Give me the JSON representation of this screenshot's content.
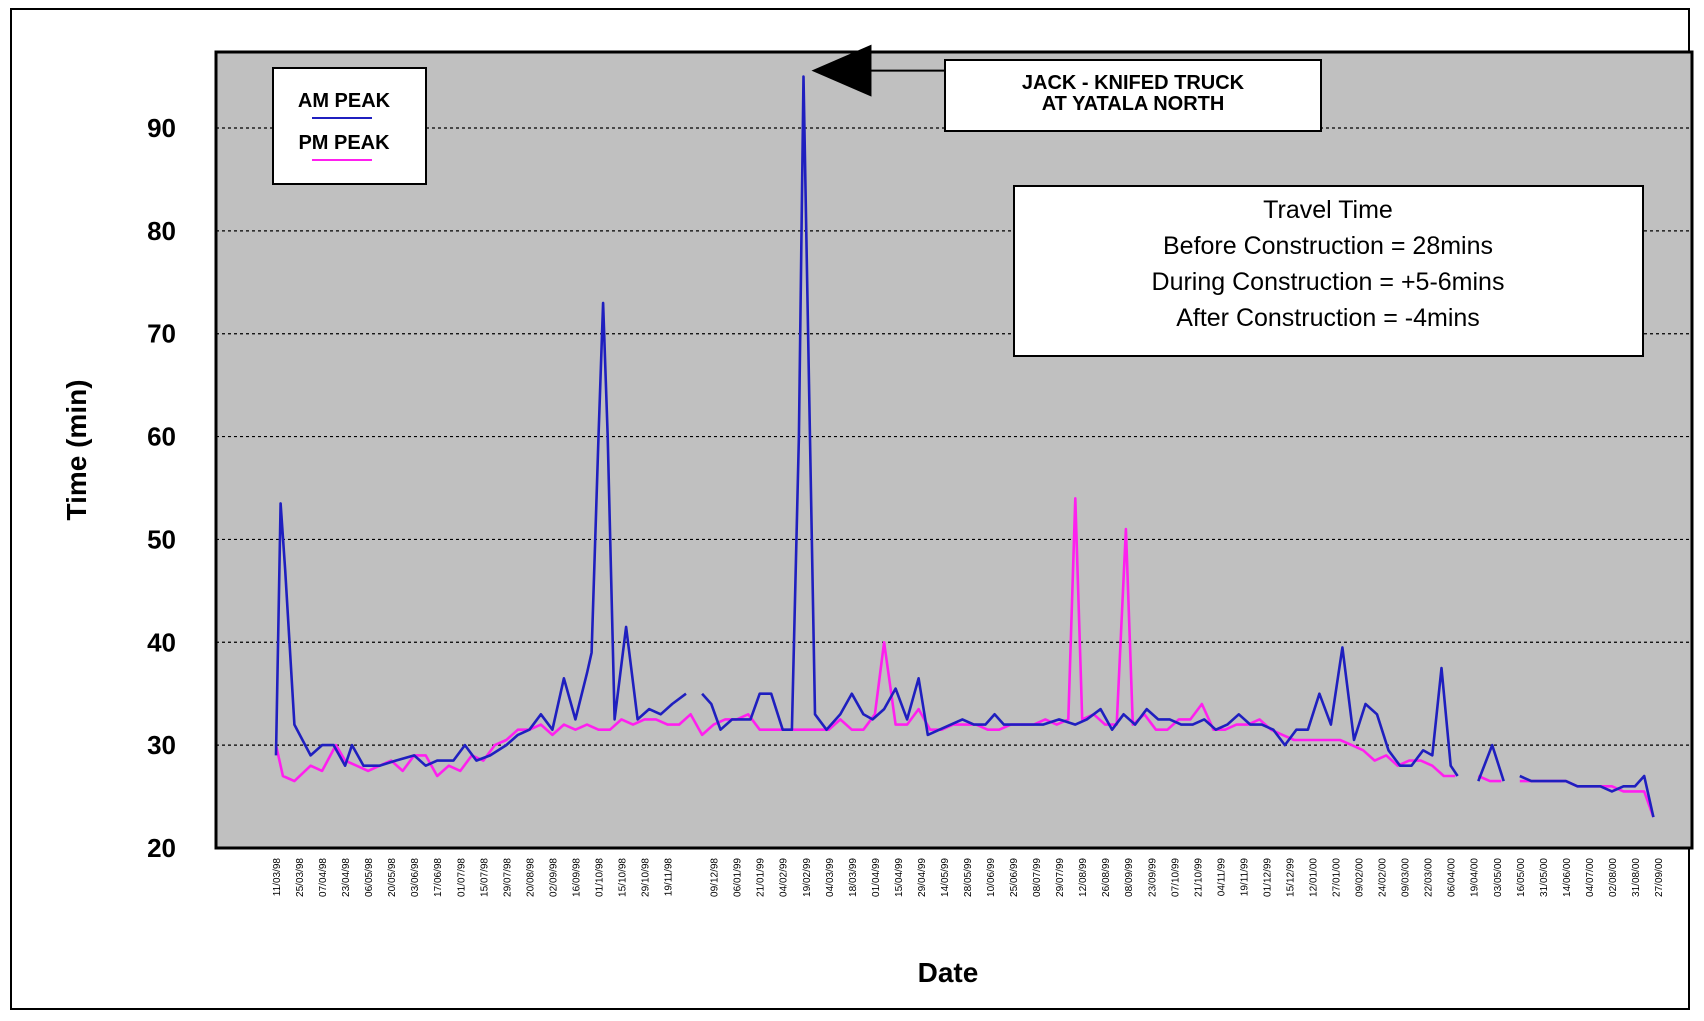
{
  "chart_data": {
    "type": "line",
    "title": "",
    "xlabel": "Date",
    "ylabel": "Time (min)",
    "ylim": [
      20,
      100
    ],
    "yticks": [
      20,
      30,
      40,
      50,
      60,
      70,
      80,
      90
    ],
    "grid": "horizontal dotted",
    "legend_position": "top-left",
    "x_tick_labels": [
      "11/03/98",
      "25/03/98",
      "07/04/98",
      "23/04/98",
      "06/05/98",
      "20/05/98",
      "03/06/98",
      "17/06/98",
      "01/07/98",
      "15/07/98",
      "29/07/98",
      "20/08/98",
      "02/09/98",
      "16/09/98",
      "01/10/98",
      "15/10/98",
      "29/10/98",
      "19/11/98",
      "",
      "09/12/98",
      "06/01/99",
      "21/01/99",
      "04/02/99",
      "19/02/99",
      "04/03/99",
      "18/03/99",
      "01/04/99",
      "15/04/99",
      "29/04/99",
      "14/05/99",
      "28/05/99",
      "10/06/99",
      "25/06/99",
      "08/07/99",
      "29/07/99",
      "12/08/99",
      "26/08/99",
      "08/09/99",
      "23/09/99",
      "07/10/99",
      "21/10/99",
      "04/11/99",
      "19/11/99",
      "01/12/99",
      "15/12/99",
      "12/01/00",
      "27/01/00",
      "09/02/00",
      "24/02/00",
      "09/03/00",
      "22/03/00",
      "06/04/00",
      "19/04/00",
      "03/05/00",
      "16/05/00",
      "31/05/00",
      "14/06/00",
      "04/07/00",
      "02/08/00",
      "31/08/00",
      "27/09/00"
    ],
    "series": [
      {
        "name": "AM PEAK",
        "color": "#1f1fbf",
        "points": [
          [
            0,
            29
          ],
          [
            0.2,
            53.5
          ],
          [
            0.4,
            47
          ],
          [
            0.8,
            32
          ],
          [
            1.5,
            29
          ],
          [
            2,
            30
          ],
          [
            2.5,
            30
          ],
          [
            3,
            28
          ],
          [
            3.3,
            30
          ],
          [
            3.8,
            28
          ],
          [
            4.5,
            28
          ],
          [
            5.2,
            28.5
          ],
          [
            6,
            29
          ],
          [
            6.5,
            28
          ],
          [
            7,
            28.5
          ],
          [
            7.7,
            28.5
          ],
          [
            8.2,
            30
          ],
          [
            8.7,
            28.5
          ],
          [
            9.3,
            29
          ],
          [
            10,
            30
          ],
          [
            10.5,
            31
          ],
          [
            11,
            31.5
          ],
          [
            11.5,
            33
          ],
          [
            12,
            31.5
          ],
          [
            12.5,
            36.5
          ],
          [
            13,
            32.5
          ],
          [
            13.5,
            37
          ],
          [
            13.7,
            39
          ],
          [
            14,
            60
          ],
          [
            14.2,
            73
          ],
          [
            14.4,
            60
          ],
          [
            14.7,
            32.5
          ],
          [
            15.2,
            41.5
          ],
          [
            15.7,
            32.5
          ],
          [
            16.2,
            33.5
          ],
          [
            16.7,
            33
          ],
          [
            17.2,
            34
          ],
          [
            17.8,
            35
          ],
          [
            null,
            null
          ],
          [
            18.5,
            35
          ],
          [
            18.9,
            34
          ],
          [
            19.3,
            31.5
          ],
          [
            19.8,
            32.5
          ],
          [
            20.2,
            32.5
          ],
          [
            20.6,
            32.5
          ],
          [
            21,
            35
          ],
          [
            21.5,
            35
          ],
          [
            22,
            31.5
          ],
          [
            22.4,
            31.5
          ],
          [
            22.7,
            60
          ],
          [
            22.9,
            95
          ],
          [
            23.1,
            70
          ],
          [
            23.4,
            33
          ],
          [
            23.9,
            31.5
          ],
          [
            24.5,
            33
          ],
          [
            25,
            35
          ],
          [
            25.5,
            33
          ],
          [
            25.9,
            32.5
          ],
          [
            26.4,
            33.5
          ],
          [
            26.9,
            35.5
          ],
          [
            27.4,
            32.5
          ],
          [
            27.9,
            36.5
          ],
          [
            28.3,
            31
          ],
          [
            28.8,
            31.5
          ],
          [
            29.3,
            32
          ],
          [
            29.8,
            32.5
          ],
          [
            30.3,
            32
          ],
          [
            30.8,
            32
          ],
          [
            31.2,
            33
          ],
          [
            31.6,
            32
          ],
          [
            32.5,
            32
          ],
          [
            33.3,
            32
          ],
          [
            34,
            32.5
          ],
          [
            34.7,
            32
          ],
          [
            35.2,
            32.5
          ],
          [
            35.8,
            33.5
          ],
          [
            36.3,
            31.5
          ],
          [
            36.8,
            33
          ],
          [
            37.3,
            32
          ],
          [
            37.8,
            33.5
          ],
          [
            38.3,
            32.5
          ],
          [
            38.8,
            32.5
          ],
          [
            39.3,
            32
          ],
          [
            39.8,
            32
          ],
          [
            40.3,
            32.5
          ],
          [
            40.8,
            31.5
          ],
          [
            41.3,
            32
          ],
          [
            41.8,
            33
          ],
          [
            42.3,
            32
          ],
          [
            42.8,
            32
          ],
          [
            43.3,
            31.5
          ],
          [
            43.8,
            30
          ],
          [
            44.3,
            31.5
          ],
          [
            44.8,
            31.5
          ],
          [
            45.3,
            35
          ],
          [
            45.8,
            32
          ],
          [
            46.3,
            39.5
          ],
          [
            46.8,
            30.5
          ],
          [
            47.3,
            34
          ],
          [
            47.8,
            33
          ],
          [
            48.3,
            29.5
          ],
          [
            48.8,
            28
          ],
          [
            49.3,
            28
          ],
          [
            49.8,
            29.5
          ],
          [
            50.2,
            29
          ],
          [
            50.6,
            37.5
          ],
          [
            51,
            28
          ],
          [
            51.3,
            27
          ],
          [
            null,
            null
          ],
          [
            52.2,
            26.5
          ],
          [
            52.8,
            30
          ],
          [
            53.3,
            26.5
          ],
          [
            null,
            null
          ],
          [
            54,
            27
          ],
          [
            54.5,
            26.5
          ],
          [
            55,
            26.5
          ],
          [
            55.5,
            26.5
          ],
          [
            56,
            26.5
          ],
          [
            56.5,
            26
          ],
          [
            57,
            26
          ],
          [
            57.5,
            26
          ],
          [
            58,
            25.5
          ],
          [
            58.5,
            26
          ],
          [
            59,
            26
          ],
          [
            59.4,
            27
          ],
          [
            59.8,
            23
          ]
        ]
      },
      {
        "name": "PM PEAK",
        "color": "#ff1fef",
        "points": [
          [
            0,
            30
          ],
          [
            0.3,
            27
          ],
          [
            0.8,
            26.5
          ],
          [
            1.5,
            28
          ],
          [
            2,
            27.5
          ],
          [
            2.6,
            30
          ],
          [
            3,
            28.5
          ],
          [
            3.5,
            28
          ],
          [
            4,
            27.5
          ],
          [
            4.5,
            28
          ],
          [
            5,
            28.5
          ],
          [
            5.5,
            27.5
          ],
          [
            6,
            29
          ],
          [
            6.5,
            29
          ],
          [
            7,
            27
          ],
          [
            7.5,
            28
          ],
          [
            8,
            27.5
          ],
          [
            8.5,
            29
          ],
          [
            9,
            28.5
          ],
          [
            9.5,
            30
          ],
          [
            10,
            30.5
          ],
          [
            10.5,
            31.5
          ],
          [
            11,
            31.5
          ],
          [
            11.5,
            32
          ],
          [
            12,
            31
          ],
          [
            12.5,
            32
          ],
          [
            13,
            31.5
          ],
          [
            13.5,
            32
          ],
          [
            14,
            31.5
          ],
          [
            14.5,
            31.5
          ],
          [
            15,
            32.5
          ],
          [
            15.5,
            32
          ],
          [
            16,
            32.5
          ],
          [
            16.5,
            32.5
          ],
          [
            17,
            32
          ],
          [
            17.5,
            32
          ],
          [
            18,
            33
          ],
          [
            18.5,
            31
          ],
          [
            19,
            32
          ],
          [
            19.5,
            32.5
          ],
          [
            20,
            32.5
          ],
          [
            20.5,
            33
          ],
          [
            21,
            31.5
          ],
          [
            21.5,
            31.5
          ],
          [
            22,
            31.5
          ],
          [
            22.5,
            31.5
          ],
          [
            23,
            31.5
          ],
          [
            23.5,
            31.5
          ],
          [
            24,
            31.5
          ],
          [
            24.5,
            32.5
          ],
          [
            25,
            31.5
          ],
          [
            25.5,
            31.5
          ],
          [
            26,
            33
          ],
          [
            26.4,
            40
          ],
          [
            26.9,
            32
          ],
          [
            27.4,
            32
          ],
          [
            27.9,
            33.5
          ],
          [
            28.4,
            31.5
          ],
          [
            28.9,
            31.5
          ],
          [
            29.4,
            32
          ],
          [
            29.9,
            32
          ],
          [
            30.4,
            32
          ],
          [
            30.9,
            31.5
          ],
          [
            31.4,
            31.5
          ],
          [
            31.9,
            32
          ],
          [
            32.4,
            32
          ],
          [
            32.9,
            32
          ],
          [
            33.4,
            32.5
          ],
          [
            33.9,
            32
          ],
          [
            34.4,
            32.5
          ],
          [
            34.7,
            54
          ],
          [
            35,
            32.5
          ],
          [
            35.5,
            33
          ],
          [
            36,
            32
          ],
          [
            36.5,
            32
          ],
          [
            36.9,
            51
          ],
          [
            37.2,
            32
          ],
          [
            37.7,
            33
          ],
          [
            38.2,
            31.5
          ],
          [
            38.7,
            31.5
          ],
          [
            39.2,
            32.5
          ],
          [
            39.7,
            32.5
          ],
          [
            40.2,
            34
          ],
          [
            40.7,
            31.5
          ],
          [
            41.2,
            31.5
          ],
          [
            41.7,
            32
          ],
          [
            42.2,
            32
          ],
          [
            42.7,
            32.5
          ],
          [
            43.2,
            31.5
          ],
          [
            43.7,
            31
          ],
          [
            44.2,
            30.5
          ],
          [
            44.7,
            30.5
          ],
          [
            45.2,
            30.5
          ],
          [
            45.7,
            30.5
          ],
          [
            46.2,
            30.5
          ],
          [
            46.7,
            30
          ],
          [
            47.2,
            29.5
          ],
          [
            47.7,
            28.5
          ],
          [
            48.2,
            29
          ],
          [
            48.7,
            28
          ],
          [
            49.2,
            28.5
          ],
          [
            49.7,
            28.5
          ],
          [
            50.2,
            28
          ],
          [
            50.7,
            27
          ],
          [
            51.2,
            27
          ],
          [
            null,
            null
          ],
          [
            52.2,
            27
          ],
          [
            52.7,
            26.5
          ],
          [
            53.2,
            26.5
          ],
          [
            null,
            null
          ],
          [
            54,
            26.5
          ],
          [
            54.5,
            26.5
          ],
          [
            55,
            26.5
          ],
          [
            55.5,
            26.5
          ],
          [
            56,
            26.5
          ],
          [
            56.5,
            26
          ],
          [
            57,
            26
          ],
          [
            57.5,
            26
          ],
          [
            58,
            26
          ],
          [
            58.5,
            25.5
          ],
          [
            59,
            25.5
          ],
          [
            59.4,
            25.5
          ],
          [
            59.8,
            23
          ]
        ]
      }
    ],
    "annotation": {
      "line1": "JACK - KNIFED TRUCK",
      "line2": "AT YATALA NORTH",
      "target_x": 22.9,
      "target_y": 95
    },
    "info_box": {
      "line1": "Travel Time",
      "line2": "Before Construction = 28mins",
      "line3": "During Construction = +5-6mins",
      "line4": "After Construction = -4mins"
    }
  }
}
